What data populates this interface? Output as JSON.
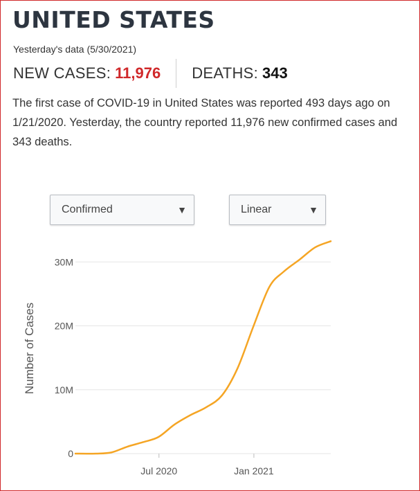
{
  "header": {
    "title": "UNITED STATES",
    "subtitle": "Yesterday's data (5/30/2021)",
    "new_cases_label": "NEW CASES:",
    "new_cases_value": "11,976",
    "deaths_label": "DEATHS:",
    "deaths_value": "343"
  },
  "description": "The first case of COVID-19 in United States was reported 493 days ago on 1/21/2020. Yesterday, the country reported 11,976 new confirmed cases and 343 deaths.",
  "controls": {
    "metric_select": "Confirmed",
    "scale_select": "Linear",
    "arrow_icon": "dropdown-triangle-icon"
  },
  "colors": {
    "accent_red": "#d0282a",
    "line": "#f5a524",
    "grid": "#e6e6e6",
    "axis_text": "#555555"
  },
  "chart_data": {
    "type": "line",
    "title": "",
    "xlabel": "",
    "ylabel": "Number of Cases",
    "x_ticks": [
      {
        "date": "2020-07-01",
        "label": "Jul 2020"
      },
      {
        "date": "2021-01-01",
        "label": "Jan 2021"
      }
    ],
    "y_ticks": [
      {
        "value": 0,
        "label": "0"
      },
      {
        "value": 10000000,
        "label": "10M"
      },
      {
        "value": 20000000,
        "label": "20M"
      },
      {
        "value": 30000000,
        "label": "30M"
      }
    ],
    "xlim": [
      "2020-01-21",
      "2021-05-30"
    ],
    "ylim": [
      0,
      33500000
    ],
    "grid": true,
    "series": [
      {
        "x": [
          "2020-01-21",
          "2020-03-01",
          "2020-03-31",
          "2020-04-30",
          "2020-05-31",
          "2020-06-30",
          "2020-07-31",
          "2020-08-31",
          "2020-09-30",
          "2020-10-31",
          "2020-11-30",
          "2020-12-31",
          "2021-01-31",
          "2021-02-28",
          "2021-03-31",
          "2021-04-30",
          "2021-05-30"
        ],
        "y": [
          1,
          75,
          190000,
          1070000,
          1790000,
          2600000,
          4550000,
          6030000,
          7230000,
          9100000,
          13300000,
          19900000,
          26100000,
          28500000,
          30400000,
          32300000,
          33250000
        ]
      }
    ]
  }
}
